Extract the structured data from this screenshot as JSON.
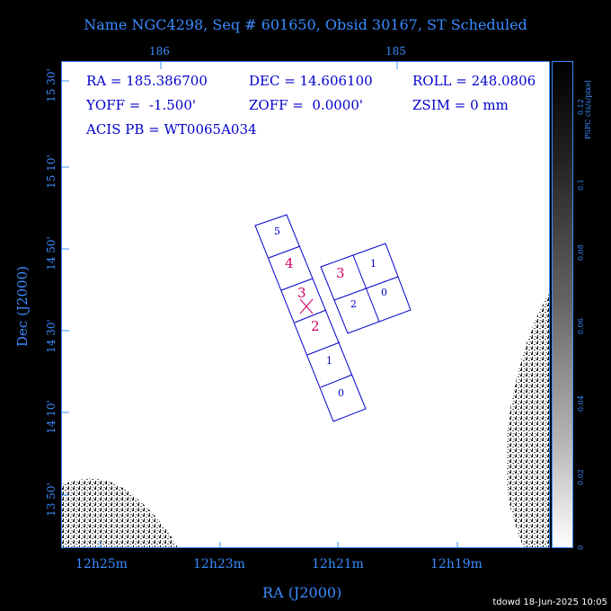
{
  "title": "Name NGC4298, Seq # 601650, Obsid 30167, ST Scheduled",
  "top_axis": {
    "ticks": [
      "186",
      "185"
    ]
  },
  "info": {
    "ra": "RA = 185.386700",
    "dec": "DEC = 14.606100",
    "roll": "ROLL = 248.0806",
    "yoff": "YOFF =  -1.500'",
    "zoff": "ZOFF =  0.0000'",
    "zsim": "ZSIM = 0 mm",
    "acis": "ACIS PB = WT0065A034"
  },
  "y_axis": {
    "label": "Dec (J2000)",
    "ticks": [
      "15 30'",
      "15 10'",
      "14 50'",
      "14 30'",
      "14 10'",
      "13 50'"
    ]
  },
  "x_axis": {
    "label": "RA (J2000)",
    "ticks": [
      "12h25m",
      "12h23m",
      "12h21m",
      "12h19m"
    ]
  },
  "colorbar": {
    "label": "PSPC cts/s/pixel",
    "ticks": [
      "0.12",
      "0.1",
      "0.08",
      "0.06",
      "0.04",
      "0.02",
      "0"
    ]
  },
  "chips_left": [
    "5",
    "4",
    "3",
    "2",
    "1",
    "0"
  ],
  "chips_right": [
    "3",
    "1",
    "2",
    "0"
  ],
  "credit": "tdowd 18-Jun-2025 10:05",
  "colors": {
    "axis": "#3a8cff",
    "chip_outline": "#0000cc",
    "highlight": "#cc0066"
  }
}
